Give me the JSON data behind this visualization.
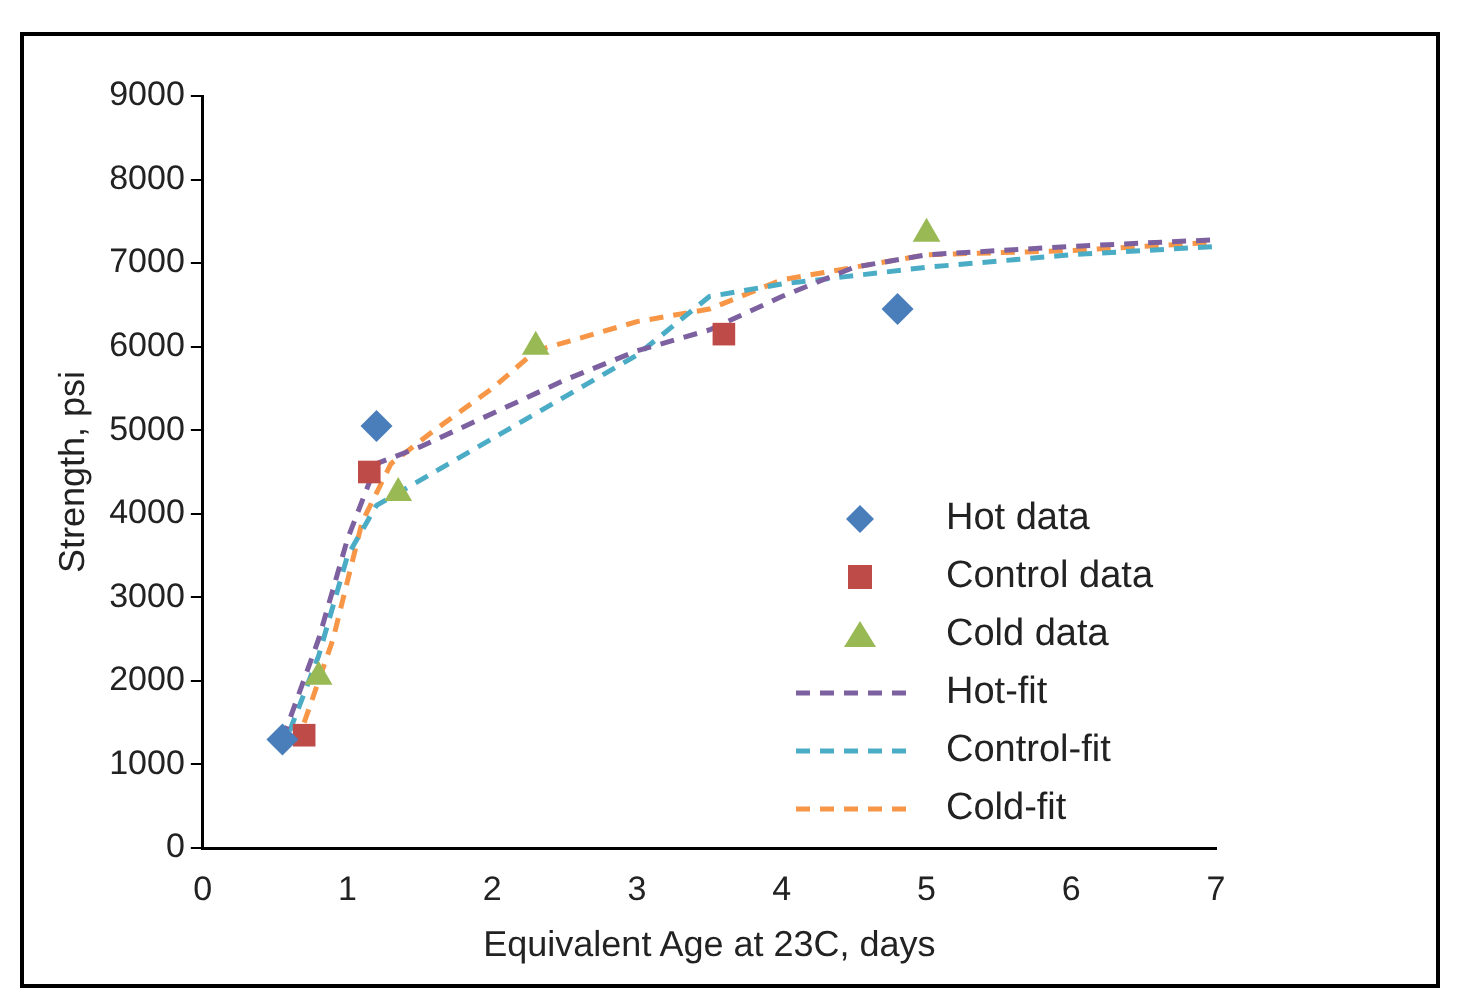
{
  "chart_data": {
    "type": "scatter",
    "xlabel": "Equivalent Age at 23C, days",
    "ylabel": "Strength, psi",
    "xlim": [
      0,
      7
    ],
    "xticks": [
      0,
      1,
      2,
      3,
      4,
      5,
      6,
      7
    ],
    "ylim": [
      0,
      9000
    ],
    "yticks": [
      0,
      1000,
      2000,
      3000,
      4000,
      5000,
      6000,
      7000,
      8000,
      9000
    ],
    "grid": false,
    "legend": "right",
    "series": [
      {
        "name": "Hot data",
        "type": "scatter",
        "marker": "diamond",
        "color": "#4a7ebb",
        "x": [
          0.55,
          1.2,
          4.8
        ],
        "values": [
          1300,
          5050,
          6450
        ]
      },
      {
        "name": "Control data",
        "type": "scatter",
        "marker": "square",
        "color": "#be4b48",
        "x": [
          0.7,
          1.15,
          3.6
        ],
        "values": [
          1350,
          4500,
          6150
        ]
      },
      {
        "name": "Cold data",
        "type": "scatter",
        "marker": "triangle",
        "color": "#98b954",
        "x": [
          0.8,
          1.35,
          2.3,
          5.0
        ],
        "values": [
          2050,
          4250,
          6000,
          7350
        ]
      },
      {
        "name": "Hot-fit",
        "type": "line",
        "marker": "none",
        "line_style": "dashed",
        "color": "#7d60a0",
        "x": [
          0.55,
          0.8,
          1.0,
          1.2,
          1.5,
          2,
          2.5,
          3,
          3.5,
          4,
          4.5,
          5,
          6,
          7
        ],
        "values": [
          1300,
          2500,
          3700,
          4600,
          4800,
          5200,
          5600,
          5950,
          6200,
          6600,
          6950,
          7100,
          7200,
          7280
        ]
      },
      {
        "name": "Control-fit",
        "type": "line",
        "marker": "none",
        "line_style": "dashed",
        "color": "#4bacc6",
        "x": [
          0.6,
          0.8,
          1.0,
          1.2,
          1.5,
          2,
          2.5,
          3,
          3.5,
          4,
          5,
          6,
          7
        ],
        "values": [
          1400,
          2300,
          3500,
          4100,
          4400,
          4900,
          5400,
          5900,
          6600,
          6750,
          6950,
          7100,
          7200
        ]
      },
      {
        "name": "Cold-fit",
        "type": "line",
        "marker": "none",
        "line_style": "dashed",
        "color": "#f79646",
        "x": [
          0.7,
          0.9,
          1.1,
          1.3,
          1.6,
          2,
          2.3,
          3,
          3.5,
          4,
          5,
          6,
          7
        ],
        "values": [
          1500,
          2500,
          3900,
          4600,
          5000,
          5500,
          5950,
          6300,
          6450,
          6800,
          7100,
          7150,
          7250
        ]
      }
    ]
  }
}
